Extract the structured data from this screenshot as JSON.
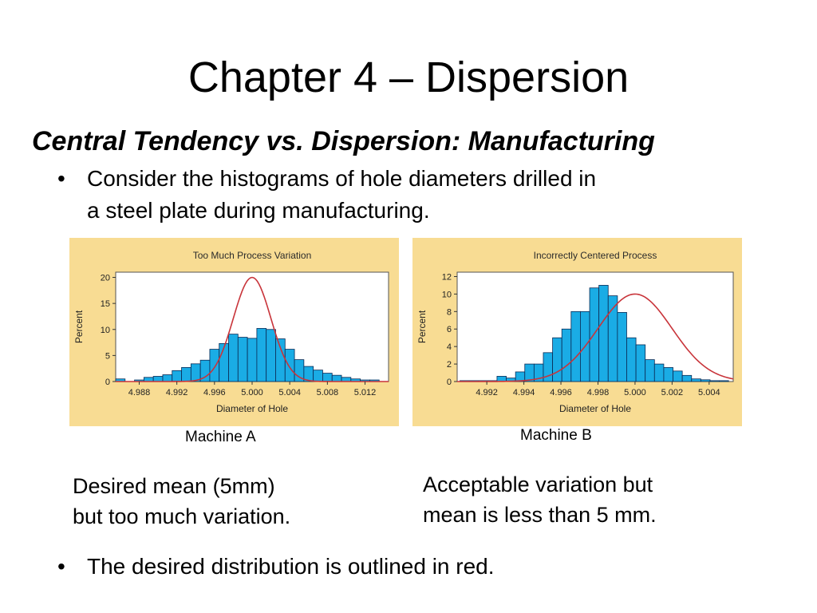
{
  "slide": {
    "title": "Chapter 4 – Dispersion",
    "subtitle": "Central Tendency vs. Dispersion: Manufacturing",
    "bullet1": {
      "marker": "•",
      "line1": "Consider the histograms of hole diameters drilled in",
      "line2": "a steel plate during manufacturing."
    },
    "label_a": "Machine A",
    "label_b": "Machine B",
    "note_a": {
      "line1": "Desired mean (5mm)",
      "line2": "but too much variation."
    },
    "note_b": {
      "line1": "Acceptable variation but",
      "line2": "mean is less than 5 mm."
    },
    "bullet2": {
      "marker": "•",
      "text": "The desired distribution is outlined in red."
    }
  },
  "colors": {
    "panel_background": "#F8DC93",
    "bar_fill": "#1AACE5",
    "bar_stroke": "#0A2A55",
    "curve": "#C8343A"
  },
  "chart_data": [
    {
      "type": "bar",
      "title": "Too Much Process Variation",
      "xlabel": "Diameter of Hole",
      "ylabel": "Percent",
      "xlim": [
        4.9855,
        5.0145
      ],
      "ylim": [
        0,
        21
      ],
      "yticks": [
        0,
        5,
        10,
        15,
        20
      ],
      "xticks": [
        4.988,
        4.992,
        4.996,
        5.0,
        5.004,
        5.008,
        5.012
      ],
      "xtick_labels": [
        "4.988",
        "4.992",
        "4.996",
        "5.000",
        "5.004",
        "5.008",
        "5.012"
      ],
      "bin_width": 0.001,
      "bin_centers": [
        4.986,
        4.987,
        4.988,
        4.989,
        4.99,
        4.991,
        4.992,
        4.993,
        4.994,
        4.995,
        4.996,
        4.997,
        4.998,
        4.999,
        5.0,
        5.001,
        5.002,
        5.003,
        5.004,
        5.005,
        5.006,
        5.007,
        5.008,
        5.009,
        5.01,
        5.011,
        5.012,
        5.013,
        5.014
      ],
      "values": [
        0.5,
        0,
        0.3,
        0.8,
        1.0,
        1.3,
        2.1,
        2.7,
        3.4,
        4.1,
        6.2,
        7.3,
        9.1,
        8.5,
        8.3,
        10.2,
        10.0,
        8.2,
        6.2,
        4.2,
        2.9,
        2.2,
        1.6,
        1.2,
        0.8,
        0.5,
        0.3,
        0.3,
        0
      ],
      "desired_curve": {
        "mean": 5.0,
        "sd": 0.002,
        "peak": 20
      }
    },
    {
      "type": "bar",
      "title": "Incorrectly Centered Process",
      "xlabel": "Diameter of Hole",
      "ylabel": "Percent",
      "xlim": [
        4.9904,
        5.0053
      ],
      "ylim": [
        0,
        12.5
      ],
      "yticks": [
        0,
        2,
        4,
        6,
        8,
        10,
        12
      ],
      "xticks": [
        4.992,
        4.994,
        4.996,
        4.998,
        5.0,
        5.002,
        5.004
      ],
      "xtick_labels": [
        "4.992",
        "4.994",
        "4.996",
        "4.998",
        "5.000",
        "5.002",
        "5.004"
      ],
      "bin_width": 0.0005,
      "bin_centers": [
        4.9908,
        4.9913,
        4.9918,
        4.9923,
        4.9928,
        4.9933,
        4.9938,
        4.9943,
        4.9948,
        4.9953,
        4.9958,
        4.9963,
        4.9968,
        4.9973,
        4.9978,
        4.9983,
        4.9988,
        4.9993,
        4.9998,
        5.0003,
        5.0008,
        5.0013,
        5.0018,
        5.0023,
        5.0028,
        5.0033,
        5.0038,
        5.0043,
        5.0048,
        5.0053
      ],
      "values": [
        0.1,
        0.1,
        0.1,
        0.1,
        0.6,
        0.4,
        1.1,
        2.0,
        2.0,
        3.3,
        5.0,
        6.0,
        8.0,
        8.0,
        10.7,
        11.0,
        9.8,
        7.9,
        5.0,
        4.2,
        2.5,
        2.0,
        1.6,
        1.2,
        0.7,
        0.3,
        0.2,
        0.1,
        0.1,
        0
      ],
      "desired_curve": {
        "mean": 5.0,
        "sd": 0.002,
        "peak": 10
      }
    }
  ]
}
